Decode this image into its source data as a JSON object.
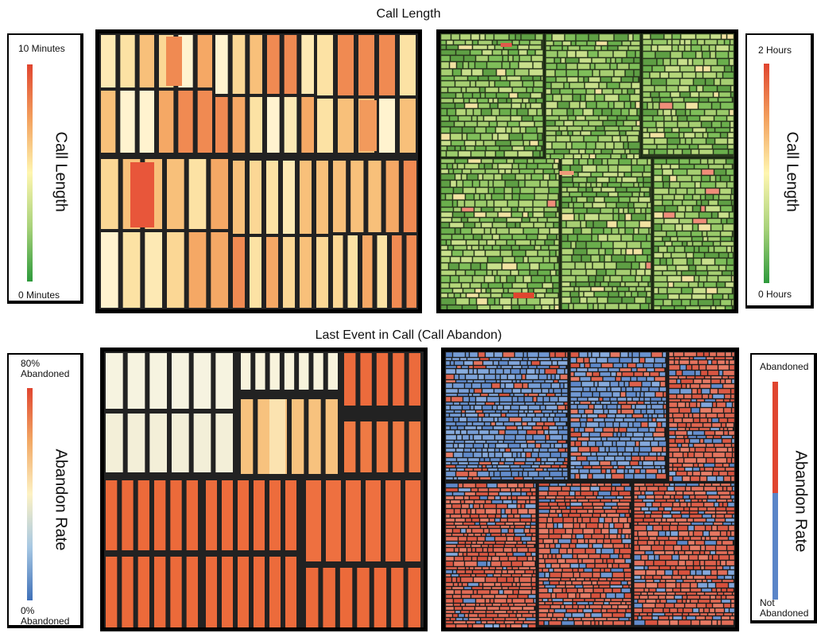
{
  "titles": {
    "top": "Call Length",
    "bottom": "Last Event in Call (Call Abandon)"
  },
  "legends": {
    "call_length_minutes": {
      "max": "10 Minutes",
      "min": "0 Minutes",
      "title": "Call Length"
    },
    "call_length_hours": {
      "max": "2 Hours",
      "min": "0 Hours",
      "title": "Call Length"
    },
    "abandon_rate": {
      "max": "80%\nAbandoned",
      "min": "0%\nAbandoned",
      "title": "Abandon Rate"
    },
    "abandon_binary": {
      "max": "Abandoned",
      "min": "Not\nAbandoned",
      "title": "Abandon Rate"
    }
  },
  "colors": {
    "low_green": "#2e9a3c",
    "mid_yellow": "#fff6b0",
    "high_red": "#e0452f",
    "blue": "#5a85c8",
    "cream": "#f5f2e2",
    "orange": "#ea6a3a"
  }
}
